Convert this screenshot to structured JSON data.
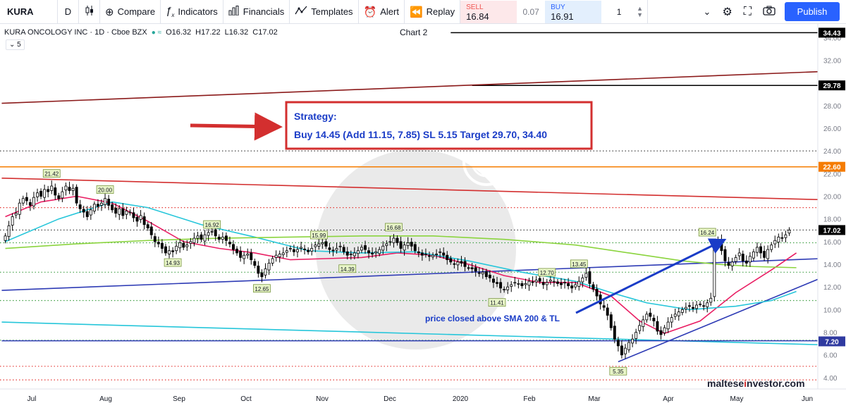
{
  "toolbar": {
    "symbol": "KURA",
    "interval": "D",
    "compare": "Compare",
    "indicators": "Indicators",
    "financials": "Financials",
    "templates": "Templates",
    "alert": "Alert",
    "replay": "Replay",
    "sell_label": "SELL",
    "sell_price": "16.84",
    "spread": "0.07",
    "buy_label": "BUY",
    "buy_price": "16.91",
    "quantity": "1",
    "publish": "Publish"
  },
  "legend": {
    "name": "KURA ONCOLOGY INC · 1D · Cboe BZX",
    "open": "O16.32",
    "high": "H17.22",
    "low": "L16.32",
    "close": "C17.02",
    "indicator_count": "5"
  },
  "chart_title": "Chart 2",
  "site": {
    "prefix": "maltese",
    "accent": "i",
    "suffix": "nvestor.com"
  },
  "strategy": {
    "title": "Strategy:",
    "text": "Buy 14.45 (Add 11.15, 7.85) SL 5.15 Target 29.70, 34.40"
  },
  "annotation": "price closed above SMA 200 & TL",
  "colors": {
    "accent": "#2962ff",
    "sell": "#ef5350",
    "strategy_border": "#d32f2f",
    "strategy_text": "#1a3cc7"
  },
  "chart_data": {
    "type": "candlestick",
    "y_axis_ticks": [
      "34.00",
      "32.00",
      "30.00",
      "28.00",
      "26.00",
      "24.00",
      "22.00",
      "20.00",
      "18.00",
      "16.00",
      "14.00",
      "12.00",
      "10.00",
      "8.00",
      "6.00",
      "4.00"
    ],
    "x_axis_ticks": [
      "Jul",
      "Aug",
      "Sep",
      "Oct",
      "Nov",
      "Dec",
      "2020",
      "Feb",
      "Mar",
      "Apr",
      "May",
      "Jun"
    ],
    "ylim": [
      3.0,
      35.2
    ],
    "price_labels": [
      {
        "value": 34.43,
        "text": "34.43",
        "bg": "#000000"
      },
      {
        "value": 29.78,
        "text": "29.78",
        "bg": "#000000"
      },
      {
        "value": 22.6,
        "text": "22.60",
        "bg": "#f57c00"
      },
      {
        "value": 17.02,
        "text": "17.02",
        "bg": "#000000"
      },
      {
        "value": 7.2,
        "text": "7.20",
        "bg": "#2f3aa0"
      }
    ],
    "swing_labels": [
      {
        "text": "21.42",
        "value": 21.42,
        "date_index": 13,
        "pos": "above"
      },
      {
        "text": "20.00",
        "value": 20.0,
        "date_index": 28,
        "pos": "above"
      },
      {
        "text": "14.93",
        "value": 14.93,
        "date_index": 47,
        "pos": "below"
      },
      {
        "text": "16.92",
        "value": 16.92,
        "date_index": 58,
        "pos": "above"
      },
      {
        "text": "12.65",
        "value": 12.65,
        "date_index": 72,
        "pos": "below"
      },
      {
        "text": "15.99",
        "value": 15.99,
        "date_index": 88,
        "pos": "above"
      },
      {
        "text": "14.39",
        "value": 14.39,
        "date_index": 96,
        "pos": "below"
      },
      {
        "text": "16.68",
        "value": 16.68,
        "date_index": 109,
        "pos": "above"
      },
      {
        "text": "11.41",
        "value": 11.41,
        "date_index": 138,
        "pos": "below"
      },
      {
        "text": "12.70",
        "value": 12.7,
        "date_index": 152,
        "pos": "above"
      },
      {
        "text": "13.45",
        "value": 13.45,
        "date_index": 161,
        "pos": "above"
      },
      {
        "text": "5.35",
        "value": 5.35,
        "date_index": 172,
        "pos": "below"
      },
      {
        "text": "16.24",
        "value": 16.24,
        "date_index": 197,
        "pos": "above"
      }
    ],
    "horizontal_lines": [
      {
        "value": 34.43,
        "style": "solid",
        "color": "#000000",
        "from_index": 125
      },
      {
        "value": 29.78,
        "style": "solid",
        "color": "#000000",
        "from_index": 131
      },
      {
        "value": 24.0,
        "style": "dotted",
        "color": "#333333"
      },
      {
        "value": 22.6,
        "style": "solid",
        "color": "#f57c00"
      },
      {
        "value": 19.0,
        "style": "dotted",
        "color": "#e53935"
      },
      {
        "value": 17.02,
        "style": "dotted",
        "color": "#333333"
      },
      {
        "value": 15.9,
        "style": "dotted",
        "color": "#43a047"
      },
      {
        "value": 13.3,
        "style": "dotted",
        "color": "#43a047"
      },
      {
        "value": 10.8,
        "style": "dotted",
        "color": "#43a047"
      },
      {
        "value": 7.3,
        "style": "dotted",
        "color": "#43a047"
      },
      {
        "value": 5.0,
        "style": "dotted",
        "color": "#e53935"
      },
      {
        "value": 3.8,
        "style": "dotted",
        "color": "#e53935"
      }
    ],
    "trend_lines": [
      {
        "color": "#8b1a1a",
        "from": [
          -1,
          28.2
        ],
        "to": [
          229,
          31.0
        ]
      },
      {
        "color": "#d32f2f",
        "from": [
          -1,
          21.6
        ],
        "to": [
          229,
          19.7
        ]
      },
      {
        "color": "#2e3bb5",
        "from": [
          -1,
          11.7
        ],
        "to": [
          229,
          14.5
        ]
      },
      {
        "color": "#26c6da",
        "from": [
          -1,
          8.9
        ],
        "to": [
          229,
          6.9
        ]
      },
      {
        "color": "#2e3bb5",
        "from": [
          172,
          5.4
        ],
        "to": [
          229,
          12.8
        ]
      },
      {
        "color": "#2e3bb5",
        "from": [
          -1,
          7.25
        ],
        "to": [
          229,
          7.25
        ]
      }
    ],
    "ma_lines": [
      {
        "name": "",
        "color": "#e91e63",
        "points": [
          [
            0,
            18.2
          ],
          [
            10,
            19.5
          ],
          [
            20,
            20.0
          ],
          [
            30,
            19.4
          ],
          [
            40,
            17.8
          ],
          [
            50,
            16.0
          ],
          [
            60,
            15.4
          ],
          [
            70,
            15.0
          ],
          [
            80,
            14.4
          ],
          [
            90,
            14.5
          ],
          [
            100,
            14.6
          ],
          [
            110,
            15.0
          ],
          [
            120,
            14.8
          ],
          [
            130,
            14.0
          ],
          [
            140,
            13.0
          ],
          [
            150,
            12.4
          ],
          [
            160,
            12.4
          ],
          [
            170,
            11.2
          ],
          [
            178,
            9.0
          ],
          [
            185,
            7.9
          ],
          [
            195,
            9.0
          ],
          [
            205,
            11.5
          ],
          [
            215,
            13.5
          ],
          [
            222,
            15.0
          ]
        ]
      },
      {
        "name": "",
        "color": "#26c6da",
        "points": [
          [
            0,
            16.0
          ],
          [
            15,
            18.0
          ],
          [
            30,
            19.5
          ],
          [
            40,
            19.0
          ],
          [
            55,
            17.5
          ],
          [
            70,
            16.4
          ],
          [
            85,
            15.2
          ],
          [
            100,
            15.0
          ],
          [
            115,
            15.1
          ],
          [
            130,
            14.3
          ],
          [
            145,
            13.3
          ],
          [
            160,
            12.5
          ],
          [
            170,
            11.5
          ],
          [
            180,
            10.6
          ],
          [
            192,
            10.0
          ],
          [
            205,
            10.3
          ],
          [
            215,
            10.8
          ],
          [
            222,
            11.6
          ]
        ]
      },
      {
        "name": "",
        "color": "#8bd43e",
        "points": [
          [
            0,
            15.4
          ],
          [
            20,
            15.8
          ],
          [
            40,
            16.1
          ],
          [
            60,
            16.3
          ],
          [
            80,
            16.4
          ],
          [
            100,
            16.5
          ],
          [
            120,
            16.5
          ],
          [
            140,
            16.2
          ],
          [
            160,
            15.7
          ],
          [
            175,
            15.0
          ],
          [
            190,
            14.3
          ],
          [
            200,
            14.0
          ],
          [
            210,
            13.8
          ],
          [
            222,
            13.7
          ]
        ]
      }
    ],
    "close": [
      16.5,
      17.4,
      18.2,
      18.5,
      19.4,
      19.8,
      19.6,
      19.2,
      19.9,
      20.3,
      20.0,
      20.6,
      20.4,
      20.9,
      20.1,
      19.8,
      20.4,
      20.9,
      20.5,
      20.7,
      19.4,
      18.9,
      18.6,
      18.2,
      18.8,
      19.3,
      19.1,
      19.4,
      19.8,
      19.2,
      18.8,
      18.5,
      18.9,
      18.3,
      18.7,
      18.6,
      18.1,
      17.8,
      18.3,
      17.5,
      17.2,
      16.6,
      16.0,
      15.8,
      15.4,
      15.0,
      15.2,
      15.1,
      15.6,
      15.9,
      15.5,
      15.7,
      16.0,
      16.3,
      16.5,
      16.2,
      16.6,
      16.8,
      16.9,
      16.5,
      16.2,
      16.4,
      16.1,
      15.8,
      15.3,
      15.0,
      14.6,
      14.8,
      14.9,
      14.4,
      13.9,
      13.2,
      12.9,
      13.6,
      14.1,
      14.5,
      14.8,
      14.9,
      15.0,
      15.2,
      15.4,
      15.1,
      15.3,
      15.5,
      15.3,
      15.1,
      15.4,
      15.7,
      15.8,
      15.9,
      15.6,
      15.3,
      15.2,
      15.4,
      15.6,
      15.1,
      14.8,
      14.9,
      15.0,
      15.2,
      15.5,
      15.3,
      15.0,
      14.9,
      15.1,
      15.3,
      15.6,
      15.8,
      16.0,
      16.3,
      15.9,
      15.4,
      15.7,
      15.9,
      15.6,
      15.2,
      15.0,
      14.8,
      14.9,
      14.7,
      14.8,
      14.9,
      15.1,
      14.8,
      14.4,
      14.2,
      14.0,
      14.2,
      14.1,
      13.8,
      13.7,
      13.6,
      13.4,
      13.2,
      13.3,
      12.9,
      12.8,
      12.4,
      12.3,
      11.9,
      11.8,
      12.0,
      12.2,
      12.4,
      12.3,
      12.1,
      12.3,
      12.5,
      12.4,
      12.6,
      12.5,
      12.2,
      12.4,
      12.6,
      12.5,
      12.3,
      12.2,
      12.4,
      12.1,
      11.9,
      12.2,
      12.5,
      12.8,
      13.2,
      12.3,
      11.8,
      11.2,
      10.5,
      10.2,
      9.5,
      8.4,
      7.4,
      6.8,
      6.0,
      6.6,
      7.1,
      7.4,
      8.0,
      8.6,
      9.1,
      9.6,
      9.4,
      9.0,
      8.1,
      7.8,
      8.4,
      8.9,
      9.3,
      9.6,
      9.8,
      10.0,
      10.2,
      10.3,
      10.1,
      10.4,
      10.5,
      10.3,
      10.6,
      11.0,
      15.8,
      16.2,
      15.2,
      14.3,
      13.9,
      14.2,
      14.6,
      15.0,
      14.3,
      14.1,
      14.7,
      15.1,
      15.5,
      15.0,
      14.6,
      15.3,
      15.7,
      16.1,
      16.4,
      16.3,
      16.6,
      17.02
    ]
  }
}
